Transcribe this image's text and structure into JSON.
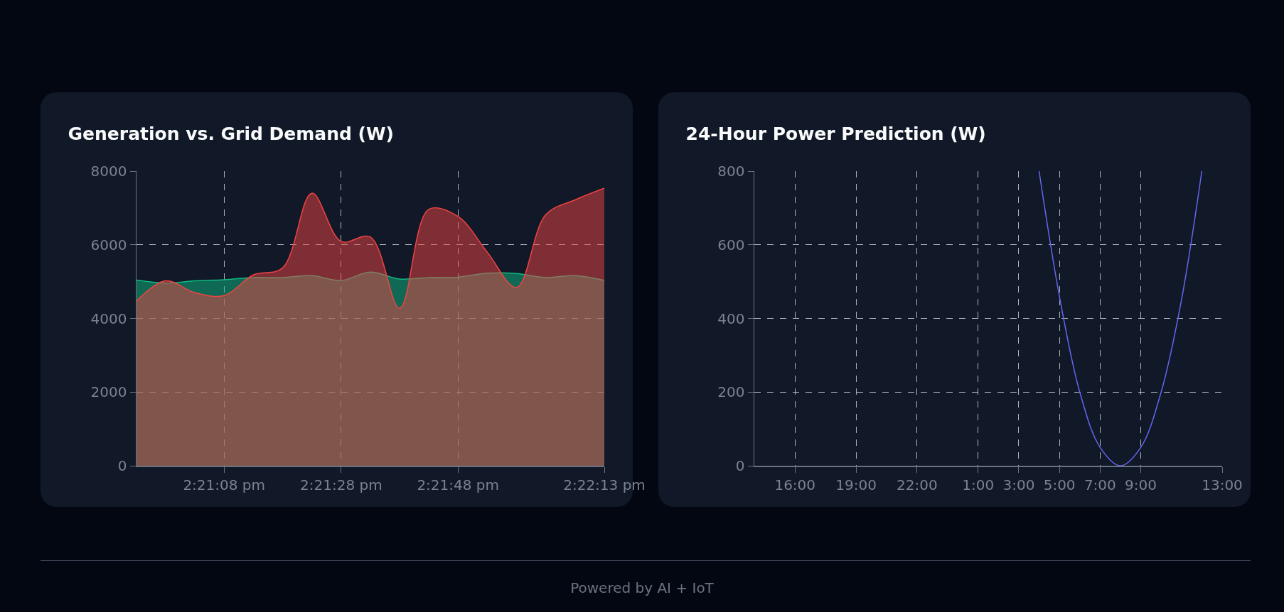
{
  "chart_data": [
    {
      "type": "area",
      "title": "Generation vs. Grid Demand (W)",
      "x": [
        14.34806,
        14.34944,
        14.35083,
        14.35222,
        14.35361,
        14.355,
        14.35639,
        14.35778,
        14.35917,
        14.36056,
        14.36194,
        14.36333,
        14.36472,
        14.36611,
        14.3675,
        14.36889,
        14.37028
      ],
      "xlim": [
        14.34806,
        14.37028
      ],
      "xticks": [
        {
          "value": 14.35222,
          "label": "2:21:08 pm"
        },
        {
          "value": 14.35778,
          "label": "2:21:28 pm"
        },
        {
          "value": 14.36333,
          "label": "2:21:48 pm"
        },
        {
          "value": 14.37028,
          "label": "2:22:13 pm"
        }
      ],
      "ylim": [
        0,
        8000
      ],
      "yticks": [
        0,
        2000,
        4000,
        6000,
        8000
      ],
      "grid": true,
      "series": [
        {
          "color": "#10b981",
          "values": [
            5040,
            4960,
            5020,
            5050,
            5110,
            5110,
            5160,
            5030,
            5260,
            5070,
            5110,
            5120,
            5230,
            5220,
            5110,
            5160,
            5030
          ]
        },
        {
          "color": "#ef4444",
          "values": [
            4470,
            5020,
            4700,
            4620,
            5180,
            5370,
            7400,
            6090,
            6210,
            4280,
            6960,
            6770,
            5800,
            4840,
            6820,
            7220,
            7540
          ]
        }
      ]
    },
    {
      "type": "line",
      "title": "24-Hour Power Prediction (W)",
      "categories": [
        null,
        null,
        "16:00",
        null,
        null,
        "19:00",
        null,
        null,
        "22:00",
        null,
        null,
        "1:00",
        null,
        "3:00",
        null,
        "5:00",
        null,
        "7:00",
        null,
        "9:00",
        null,
        null,
        null,
        "13:00"
      ],
      "ylim": [
        0,
        800
      ],
      "yticks": [
        0,
        200,
        400,
        600,
        800
      ],
      "grid": true,
      "series": [
        {
          "color": "#6366f1",
          "values": [
            null,
            null,
            null,
            null,
            null,
            null,
            null,
            null,
            null,
            null,
            null,
            null,
            null,
            null,
            800,
            460,
            200,
            50,
            0,
            50,
            200,
            450,
            800,
            null
          ]
        }
      ],
      "annotations": [
        "Powered by AI + IoT"
      ]
    }
  ]
}
